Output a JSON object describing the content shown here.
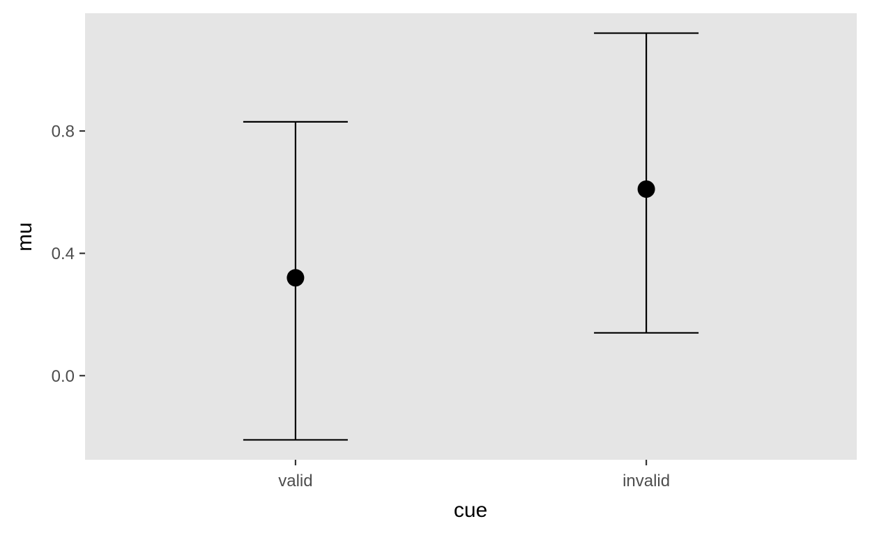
{
  "chart_data": {
    "type": "scatter",
    "subtype": "pointrange",
    "title": "",
    "xlabel": "cue",
    "ylabel": "mu",
    "categories": [
      "valid",
      "invalid"
    ],
    "series": [
      {
        "values": [
          0.32,
          0.61
        ],
        "lower": [
          -0.21,
          0.14
        ],
        "upper": [
          0.83,
          1.12
        ]
      }
    ],
    "ylim": [
      -0.275,
      1.185
    ],
    "yticks": [
      0.0,
      0.4,
      0.8
    ],
    "ytick_labels": [
      "0.0",
      "0.4",
      "0.8"
    ],
    "grid": false,
    "legend": "none",
    "colors": {
      "panel_background": "#e5e5e5",
      "marks": "#000000",
      "tick_text": "#4d4d4d",
      "axis_title": "#000000",
      "tick_marks": "#333333"
    }
  }
}
